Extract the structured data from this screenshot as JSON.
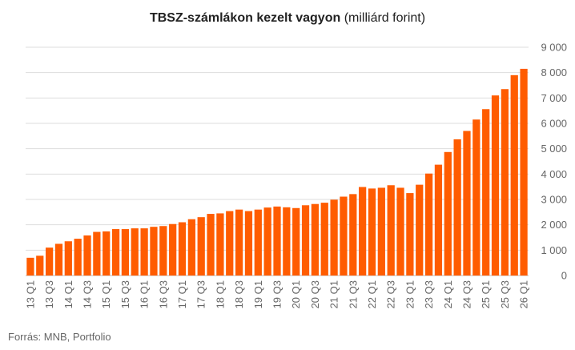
{
  "title": "TBSZ-számlákon kezelt vagyon",
  "subtitle": "(milliárd forint)",
  "source": "Forrás: MNB, Portfolio",
  "chart_data": {
    "type": "bar",
    "title": "TBSZ-számlákon kezelt vagyon (milliárd forint)",
    "xlabel": "",
    "ylabel": "",
    "ylim": [
      0,
      9000
    ],
    "yticks": [
      0,
      1000,
      2000,
      3000,
      4000,
      5000,
      6000,
      7000,
      8000,
      9000
    ],
    "ytick_labels": [
      "0",
      "1 000",
      "2 000",
      "3 000",
      "4 000",
      "5 000",
      "6 000",
      "7 000",
      "8 000",
      "9 000"
    ],
    "y_axis_position": "right",
    "grid": true,
    "bar_color": "#ff5c00",
    "categories": [
      "13 Q1",
      "13 Q2",
      "13 Q3",
      "13 Q4",
      "14 Q1",
      "14 Q2",
      "14 Q3",
      "14 Q4",
      "15 Q1",
      "15 Q2",
      "15 Q3",
      "15 Q4",
      "16 Q1",
      "16 Q2",
      "16 Q3",
      "16 Q4",
      "17 Q1",
      "17 Q2",
      "17 Q3",
      "17 Q4",
      "18 Q1",
      "18 Q2",
      "18 Q3",
      "18 Q4",
      "19 Q1",
      "19 Q2",
      "19 Q3",
      "19 Q4",
      "20 Q1",
      "20 Q2",
      "20 Q3",
      "20 Q4",
      "21 Q1",
      "21 Q2",
      "21 Q3",
      "21 Q4",
      "22 Q1",
      "22 Q2",
      "22 Q3",
      "22 Q4",
      "23 Q1",
      "23 Q2",
      "23 Q3",
      "23 Q4",
      "24 Q1",
      "24 Q2",
      "24 Q3",
      "24 Q4",
      "25 Q1",
      "25 Q2",
      "25 Q3",
      "25 Q4",
      "26 Q1"
    ],
    "visible_tick_labels": [
      "13 Q1",
      "13 Q3",
      "14 Q1",
      "14 Q3",
      "15 Q1",
      "15 Q3",
      "16 Q1",
      "16 Q3",
      "17 Q1",
      "17 Q3",
      "18 Q1",
      "18 Q3",
      "19 Q1",
      "19 Q3",
      "20 Q1",
      "20 Q3",
      "21 Q1",
      "21 Q3",
      "22 Q1",
      "22 Q3",
      "23 Q1",
      "23 Q3",
      "24 Q1",
      "24 Q3",
      "25 Q1",
      "25 Q3",
      "26 Q1"
    ],
    "values": [
      700,
      780,
      1100,
      1250,
      1350,
      1450,
      1580,
      1720,
      1740,
      1830,
      1830,
      1860,
      1860,
      1920,
      1950,
      2030,
      2100,
      2220,
      2300,
      2430,
      2450,
      2540,
      2600,
      2540,
      2600,
      2680,
      2720,
      2690,
      2660,
      2770,
      2820,
      2870,
      2990,
      3110,
      3210,
      3490,
      3430,
      3460,
      3560,
      3460,
      3250,
      3580,
      4020,
      4370,
      4870,
      5370,
      5700,
      6150,
      6560,
      7100,
      7350,
      7900,
      8150
    ]
  }
}
